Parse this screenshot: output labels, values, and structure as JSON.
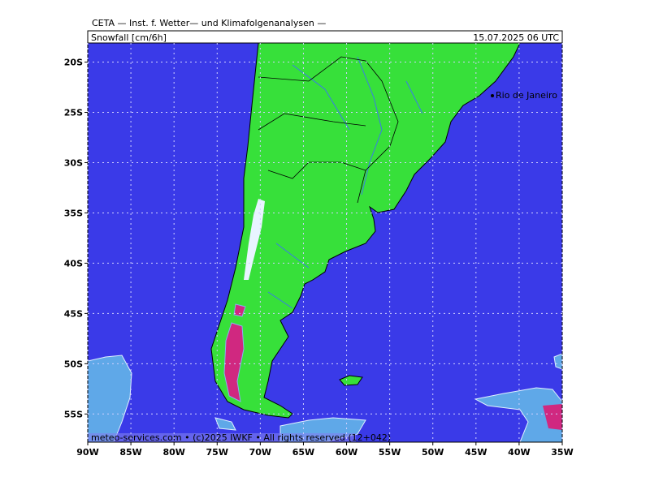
{
  "header": {
    "title": "CETA — Inst. f. Wetter— und Klimafolgenanalysen —",
    "variable": "Snowfall [cm/6h]",
    "valid_time": "15.07.2025 06 UTC"
  },
  "map": {
    "lonlim": [
      -90,
      -35
    ],
    "latlim": [
      -18.1,
      -57.8
    ],
    "lon_ticks": [
      {
        "value": -90,
        "label": "90W"
      },
      {
        "value": -85,
        "label": "85W"
      },
      {
        "value": -80,
        "label": "80W"
      },
      {
        "value": -75,
        "label": "75W"
      },
      {
        "value": -70,
        "label": "70W"
      },
      {
        "value": -65,
        "label": "65W"
      },
      {
        "value": -60,
        "label": "60W"
      },
      {
        "value": -55,
        "label": "55W"
      },
      {
        "value": -50,
        "label": "50W"
      },
      {
        "value": -45,
        "label": "45W"
      },
      {
        "value": -40,
        "label": "40W"
      },
      {
        "value": -35,
        "label": "35W"
      }
    ],
    "lat_ticks": [
      {
        "value": -20,
        "label": "20S"
      },
      {
        "value": -25,
        "label": "25S"
      },
      {
        "value": -30,
        "label": "30S"
      },
      {
        "value": -35,
        "label": "35S"
      },
      {
        "value": -40,
        "label": "40S"
      },
      {
        "value": -45,
        "label": "45S"
      },
      {
        "value": -50,
        "label": "50S"
      },
      {
        "value": -55,
        "label": "55S"
      }
    ],
    "city": "Rio de Janeiro"
  },
  "footer": "meteo-services.com • (c)2025 IWKF • All rights reserved (12+042)"
}
